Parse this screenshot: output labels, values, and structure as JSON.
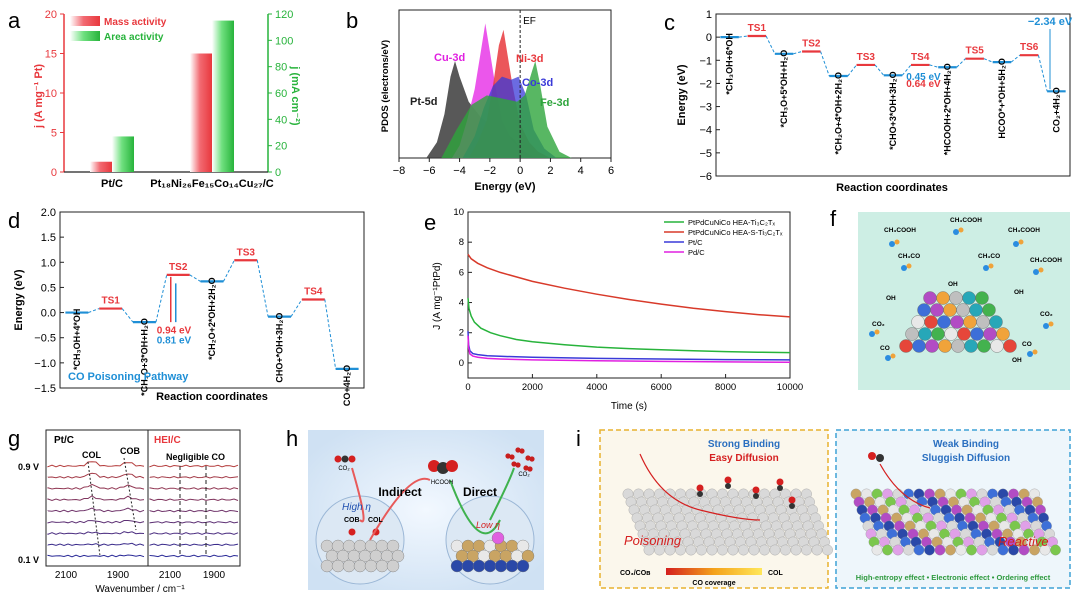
{
  "panel_labels": {
    "a": "a",
    "b": "b",
    "c": "c",
    "d": "d",
    "e": "e",
    "f": "f",
    "g": "g",
    "h": "h",
    "i": "i"
  },
  "colors": {
    "red": "#e8383d",
    "green": "#27b33b",
    "blue": "#1f8fd6",
    "magenta": "#e020e0",
    "mass_bar": "#ee4d56",
    "area_bar": "#48d461",
    "pt": "#3b3b3b",
    "ni": "#e8383d",
    "co": "#3a3ad8",
    "fe": "#2ea53c",
    "cu": "#e838e8"
  },
  "chart_data": [
    {
      "id": "a",
      "type": "bar",
      "categories": [
        "Pt/C",
        "Pt18Ni26Fe15Co14Cu27/C"
      ],
      "category_labels": [
        "Pt/C",
        "Pt₁₈Ni₂₆Fe₁₅Co₁₄Cu₂₇/C"
      ],
      "series": [
        {
          "name": "Mass activity",
          "values": [
            1.3,
            15.0
          ],
          "axis": "left"
        },
        {
          "name": "Area activity",
          "values": [
            27,
            115
          ],
          "axis": "right"
        }
      ],
      "ylabel_left": "j (A mg⁻¹ Pt)",
      "ylabel_right": "j (mA cm⁻²)",
      "ylim_left": [
        0,
        20
      ],
      "ylim_right": [
        0,
        120
      ],
      "yticks_left": [
        "0",
        "5",
        "10",
        "15",
        "20"
      ],
      "yticks_right": [
        "0",
        "20",
        "40",
        "60",
        "80",
        "100",
        "120"
      ],
      "legend": "top-left"
    },
    {
      "id": "b",
      "type": "area",
      "xlabel": "Energy (eV)",
      "ylabel": "PDOS (electrons/eV)",
      "xlim": [
        -8,
        6
      ],
      "xticks": [
        "−8",
        "−6",
        "−4",
        "−2",
        "0",
        "2",
        "4",
        "6"
      ],
      "fermi_label": "EF",
      "series": [
        {
          "name": "Pt-5d",
          "x": [
            -6.2,
            -5.5,
            -5.0,
            -4.6,
            -4.3,
            -4.0,
            -3.4,
            -2.6,
            -1.8,
            -1.0,
            -0.4,
            0,
            0.6,
            1.2
          ],
          "y": [
            0,
            0.5,
            1.4,
            2.6,
            3.1,
            2.6,
            1.8,
            1.3,
            1.0,
            0.8,
            0.6,
            0.3,
            0.1,
            0
          ]
        },
        {
          "name": "Cu-3d",
          "x": [
            -4.5,
            -4.0,
            -3.5,
            -3.0,
            -2.6,
            -2.3,
            -2.0,
            -1.6,
            -1.2,
            -0.6,
            0,
            0.6,
            1.2
          ],
          "y": [
            0,
            0.4,
            1.2,
            2.2,
            3.4,
            4.3,
            3.4,
            2.2,
            1.2,
            0.6,
            0.3,
            0.1,
            0
          ]
        },
        {
          "name": "Ni-3d",
          "x": [
            -3.4,
            -2.8,
            -2.2,
            -1.8,
            -1.4,
            -1.1,
            -0.9,
            -0.5,
            0,
            0.6,
            1.2,
            2.0
          ],
          "y": [
            0,
            0.5,
            1.2,
            2.3,
            3.6,
            4.1,
            3.5,
            2.3,
            1.1,
            0.5,
            0.2,
            0
          ]
        },
        {
          "name": "Co-3d",
          "x": [
            -3.8,
            -3.0,
            -2.4,
            -1.8,
            -1.2,
            -0.6,
            -0.1,
            0.4,
            0.9,
            1.6,
            2.4
          ],
          "y": [
            0,
            0.7,
            1.6,
            2.3,
            2.6,
            2.5,
            2.6,
            2.0,
            0.9,
            0.3,
            0
          ]
        },
        {
          "name": "Fe-3d",
          "x": [
            -5.2,
            -4.2,
            -3.2,
            -2.2,
            -1.2,
            -0.2,
            0.3,
            0.8,
            1.0,
            1.3,
            1.8,
            2.6,
            3.4
          ],
          "y": [
            0,
            0.9,
            1.7,
            2.0,
            1.9,
            1.8,
            2.0,
            2.8,
            3.1,
            2.4,
            1.0,
            0.2,
            0
          ]
        }
      ],
      "legend": "inline"
    },
    {
      "id": "c",
      "type": "line",
      "xlabel": "Reaction coordinates",
      "ylabel": "Energy (eV)",
      "ylim": [
        -6,
        1
      ],
      "yticks": [
        "−6",
        "−5",
        "−4",
        "−3",
        "−2",
        "−1",
        "0",
        "1"
      ],
      "states": [
        {
          "label": "*CH3OH+6*OH",
          "type": "int",
          "E": 0.0
        },
        {
          "label": "TS1",
          "type": "ts",
          "E": 0.05
        },
        {
          "label": "*CH3O+5*OH+H2O",
          "type": "int",
          "E": -0.72
        },
        {
          "label": "TS2",
          "type": "ts",
          "E": -0.62
        },
        {
          "label": "*CH2O+4*OH+2H2O",
          "type": "int",
          "E": -1.68
        },
        {
          "label": "TS3",
          "type": "ts",
          "E": -1.2
        },
        {
          "label": "*CHO+3*OH+3H2O",
          "type": "int",
          "E": -1.65
        },
        {
          "label": "TS4",
          "type": "ts",
          "E": -1.2
        },
        {
          "label": "*HCOOH+2*OH+4H2O",
          "type": "int",
          "E": -1.3
        },
        {
          "label": "TS5",
          "type": "ts",
          "E": -0.93
        },
        {
          "label": "HCOO*+*OH+5H2O",
          "type": "int",
          "E": -1.08
        },
        {
          "label": "TS6",
          "type": "ts",
          "E": -0.78
        },
        {
          "label": "CO2+4H2O",
          "type": "int",
          "E": -2.34
        }
      ],
      "state_labels": [
        "*CH₃OH+6*OH",
        "TS1",
        "*CH₃O+5*OH+H₂O",
        "TS2",
        "*CH₂O+4*OH+2H₂O",
        "TS3",
        "*CHO+3*OH+3H₂O",
        "TS4",
        "*HCOOH+2*OH+4H₂O",
        "TS5",
        "HCOO*+*OH+5H₂O",
        "TS6",
        "CO₂+4H₂O"
      ],
      "annotations": [
        "−2.34 eV",
        "0.45 eV",
        "0.64 eV"
      ]
    },
    {
      "id": "d",
      "type": "line",
      "xlabel": "Reaction coordinates",
      "ylabel": "Energy (eV)",
      "ylim": [
        -1.5,
        2.0
      ],
      "yticks": [
        "−1.5",
        "−1.0",
        "−0.5",
        "0.0",
        "0.5",
        "1.0",
        "1.5",
        "2.0"
      ],
      "states": [
        {
          "label": "*CH3OH+4*OH",
          "type": "int",
          "E": 0.0
        },
        {
          "label": "TS1",
          "type": "ts",
          "E": 0.08
        },
        {
          "label": "*CH3O+3*OH+H2O",
          "type": "int",
          "E": -0.19
        },
        {
          "label": "TS2",
          "type": "ts",
          "E": 0.75
        },
        {
          "label": "*CH2O+2*OH+2H2O",
          "type": "int",
          "E": 0.62
        },
        {
          "label": "TS3",
          "type": "ts",
          "E": 1.04
        },
        {
          "label": "CHO+*OH+3H2O",
          "type": "int",
          "E": -0.08
        },
        {
          "label": "TS4",
          "type": "ts",
          "E": 0.26
        },
        {
          "label": "CO+4H2O",
          "type": "int",
          "E": -1.12
        }
      ],
      "state_labels": [
        "*CH₃OH+4*OH",
        "TS1",
        "*CH₃O+3*OH+H₂O",
        "TS2",
        "*CH₂O+2*OH+2H₂O",
        "TS3",
        "CHO+*OH+3H₂O",
        "TS4",
        "CO+4H₂O"
      ],
      "annotations": [
        "0.94 eV",
        "0.81 eV"
      ],
      "subtitle": "CO Poisoning Pathway"
    },
    {
      "id": "e",
      "type": "line",
      "xlabel": "Time (s)",
      "ylabel": "J (A mg⁻¹PtPd)",
      "xlim": [
        0,
        10000
      ],
      "ylim": [
        -1,
        10
      ],
      "xticks": [
        "0",
        "2000",
        "4000",
        "6000",
        "8000",
        "10000"
      ],
      "yticks": [
        "0",
        "2",
        "4",
        "6",
        "8",
        "10"
      ],
      "legend": "top-right",
      "series": [
        {
          "name": "PtPdCuNiCo HEA-Ti3C2Tx",
          "x": [
            0,
            30,
            100,
            200,
            400,
            700,
            1000,
            1500,
            2000,
            3000,
            4000,
            5000,
            6000,
            7000,
            8000,
            9000,
            10000
          ],
          "y": [
            4.3,
            3.6,
            3.1,
            2.7,
            2.3,
            2.0,
            1.8,
            1.55,
            1.4,
            1.2,
            1.05,
            0.95,
            0.87,
            0.8,
            0.75,
            0.71,
            0.68
          ]
        },
        {
          "name": "PtPdCuNiCo HEA-S-Ti3C2Tx",
          "x": [
            0,
            100,
            300,
            600,
            1000,
            1500,
            2000,
            3000,
            4000,
            5000,
            6000,
            7000,
            8000,
            9000,
            10000
          ],
          "y": [
            7.2,
            6.9,
            6.6,
            6.3,
            6.0,
            5.7,
            5.4,
            4.95,
            4.55,
            4.2,
            3.9,
            3.62,
            3.4,
            3.2,
            3.05
          ]
        },
        {
          "name": "Pt/C",
          "x": [
            0,
            20,
            60,
            150,
            300,
            600,
            1000,
            2000,
            4000,
            6000,
            8000,
            10000
          ],
          "y": [
            2.1,
            1.2,
            0.8,
            0.62,
            0.55,
            0.48,
            0.44,
            0.37,
            0.3,
            0.26,
            0.22,
            0.2
          ]
        },
        {
          "name": "Pd/C",
          "x": [
            0,
            20,
            60,
            150,
            300,
            600,
            1000,
            2000,
            4000,
            6000,
            8000,
            10000
          ],
          "y": [
            1.8,
            1.0,
            0.6,
            0.45,
            0.38,
            0.3,
            0.26,
            0.2,
            0.14,
            0.1,
            0.07,
            0.05
          ]
        }
      ],
      "series_labels": [
        "PtPdCuNiCo HEA-Ti₃C₂Tₓ",
        "PtPdCuNiCo HEA-S-Ti₃C₂Tₓ",
        "Pt/C",
        "Pd/C"
      ]
    },
    {
      "id": "g",
      "type": "line",
      "xlabel": "Wavenumber / cm⁻¹",
      "panels": [
        "Pt/C",
        "HEI/C"
      ],
      "xticks_left": [
        "2100",
        "1900"
      ],
      "xticks_right": [
        "2100",
        "1900"
      ],
      "potential_labels": [
        "0.9 V",
        "0.1 V"
      ],
      "annotations": [
        "COL",
        "COB",
        "Negligible CO"
      ],
      "n_spectra": 9
    }
  ],
  "schematic_f": {
    "labels": [
      "CH₃COOH",
      "CH₃COOH",
      "CH₃COOH",
      "CH₃COOH",
      "CH₃CO",
      "CH₃CO",
      "OH",
      "OH",
      "OH",
      "OH",
      "CO₂",
      "CO₂",
      "CO",
      "CO"
    ]
  },
  "schematic_h": {
    "pathway_indirect": "Indirect",
    "pathway_direct": "Direct",
    "left_circle": "High η",
    "right_circle": "Low η",
    "center_molecule": "HCOOH",
    "co_bridge": "COB",
    "co_linear": "COL",
    "co2_left": "CO₂",
    "co2_right": "CO₂"
  },
  "schematic_i": {
    "left_title_1": "Strong Binding",
    "left_title_2": "Easy Diffusion",
    "left_tag": "Poisoning",
    "coverage_left": "CO₃/COʙ",
    "coverage_mid": "CO coverage",
    "coverage_right": "COL",
    "right_title_1": "Weak Binding",
    "right_title_2": "Sluggish Diffusion",
    "right_tag": "Reactive",
    "effects": "High-entropy effect • Electronic effect • Ordering effect"
  }
}
